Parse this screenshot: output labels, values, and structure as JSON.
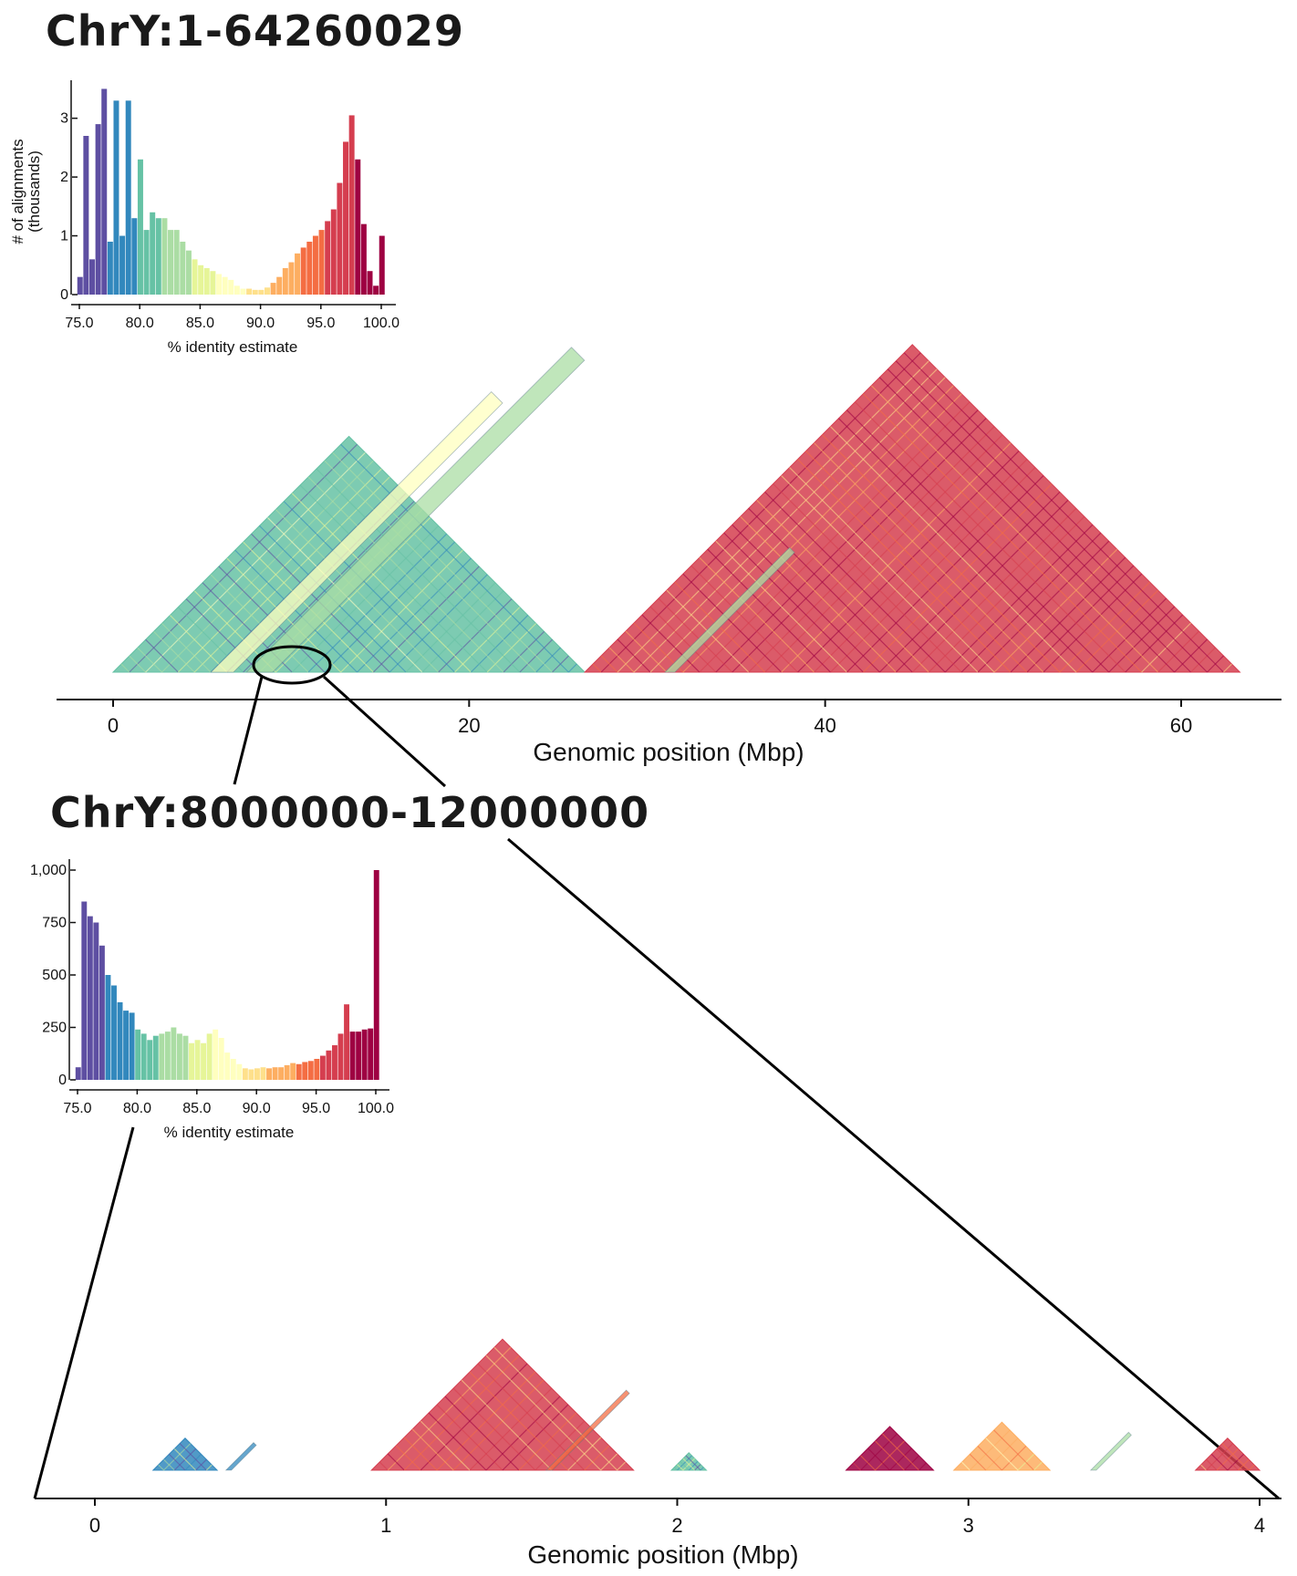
{
  "colors": {
    "palette": [
      "#5e4fa2",
      "#3288bd",
      "#66c2a5",
      "#abdda4",
      "#e6f598",
      "#ffffbf",
      "#fee08b",
      "#fdae61",
      "#f46d43",
      "#d53e4f",
      "#9e0142"
    ]
  },
  "chart_data": [
    {
      "type": "heatmap",
      "title": "ChrY:1-64260029",
      "xlabel": "Genomic position (Mbp)",
      "xlim": [
        -1.5,
        65
      ],
      "xticks": [
        0,
        20,
        40,
        60
      ],
      "xtick_labels": [
        "0",
        "20",
        "40",
        "60"
      ],
      "description_values": {
        "triangles": [
          {
            "start": 0,
            "end": 26.5,
            "identity": 80
          },
          {
            "start": 26.5,
            "end": 63.3,
            "identity": 96
          }
        ],
        "stripes": [
          {
            "start": 5.5,
            "end": 37,
            "identity": 88
          },
          {
            "start": 7.5,
            "end": 44,
            "identity": 84
          },
          {
            "start": 31,
            "end": 45,
            "identity": 82
          }
        ]
      },
      "highlight_region_mbp": [
        8,
        12
      ],
      "inset": {
        "type": "bar",
        "xlabel": "% identity estimate",
        "ylabel": "# of alignments\n(thousands)",
        "ylabel_lines": [
          "# of alignments",
          "(thousands)"
        ],
        "xlim": [
          75,
          100
        ],
        "ylim": [
          0,
          3.6
        ],
        "xticks": [
          "75.0",
          "80.0",
          "85.0",
          "90.0",
          "95.0",
          "100.0"
        ],
        "yticks": [
          "0",
          "1",
          "2",
          "3"
        ],
        "x": [
          75,
          75.5,
          76,
          76.5,
          77,
          77.5,
          78,
          78.5,
          79,
          79.5,
          80,
          80.5,
          81,
          81.5,
          82,
          82.5,
          83,
          83.5,
          84,
          84.5,
          85,
          85.5,
          86,
          86.5,
          87,
          87.5,
          88,
          88.5,
          89,
          89.5,
          90,
          90.5,
          91,
          91.5,
          92,
          92.5,
          93,
          93.5,
          94,
          94.5,
          95,
          95.5,
          96,
          96.5,
          97,
          97.5,
          98,
          98.5,
          99,
          99.5,
          100
        ],
        "values": [
          0.3,
          2.7,
          0.6,
          2.9,
          3.5,
          0.9,
          3.3,
          1.0,
          3.3,
          1.3,
          2.3,
          1.1,
          1.4,
          1.3,
          1.3,
          1.1,
          1.1,
          0.9,
          0.75,
          0.6,
          0.5,
          0.45,
          0.4,
          0.35,
          0.3,
          0.25,
          0.15,
          0.1,
          0.1,
          0.08,
          0.08,
          0.12,
          0.2,
          0.3,
          0.45,
          0.55,
          0.7,
          0.8,
          0.9,
          1.0,
          1.1,
          1.25,
          1.45,
          1.9,
          2.6,
          3.05,
          2.3,
          1.2,
          0.4,
          0.15,
          1.0
        ]
      }
    },
    {
      "type": "heatmap",
      "title": "ChrY:8000000-12000000",
      "xlabel": "Genomic position (Mbp)",
      "xlim": [
        -0.2,
        4.07
      ],
      "xticks": [
        0,
        1,
        2,
        3,
        4
      ],
      "xtick_labels": [
        "0",
        "1",
        "2",
        "3",
        "4"
      ],
      "description_values": {
        "triangles": [
          {
            "start": 0.95,
            "end": 1.85,
            "identity": 96
          },
          {
            "start": 0.2,
            "end": 0.42,
            "identity": 79
          },
          {
            "start": 2.58,
            "end": 2.88,
            "identity": 98
          },
          {
            "start": 2.95,
            "end": 3.28,
            "identity": 91
          },
          {
            "start": 3.78,
            "end": 4.0,
            "identity": 96
          },
          {
            "start": 1.98,
            "end": 2.1,
            "identity": 80
          }
        ],
        "stripes": [
          {
            "start": 1.55,
            "end": 2.1,
            "identity": 95
          },
          {
            "start": 3.42,
            "end": 3.68,
            "identity": 84
          },
          {
            "start": 0.45,
            "end": 0.64,
            "identity": 79
          }
        ]
      },
      "inset": {
        "type": "bar",
        "xlabel": "% identity estimate",
        "ylabel": "",
        "xlim": [
          75,
          100
        ],
        "ylim": [
          0,
          1000
        ],
        "xticks": [
          "75.0",
          "80.0",
          "85.0",
          "90.0",
          "95.0",
          "100.0"
        ],
        "yticks": [
          "0",
          "250",
          "500",
          "750",
          "1,000"
        ],
        "x": [
          75,
          75.5,
          76,
          76.5,
          77,
          77.5,
          78,
          78.5,
          79,
          79.5,
          80,
          80.5,
          81,
          81.5,
          82,
          82.5,
          83,
          83.5,
          84,
          84.5,
          85,
          85.5,
          86,
          86.5,
          87,
          87.5,
          88,
          88.5,
          89,
          89.5,
          90,
          90.5,
          91,
          91.5,
          92,
          92.5,
          93,
          93.5,
          94,
          94.5,
          95,
          95.5,
          96,
          96.5,
          97,
          97.5,
          98,
          98.5,
          99,
          99.5,
          100
        ],
        "values": [
          60,
          850,
          780,
          750,
          640,
          500,
          450,
          370,
          330,
          320,
          240,
          220,
          190,
          210,
          220,
          230,
          250,
          220,
          210,
          175,
          190,
          175,
          220,
          240,
          200,
          130,
          100,
          75,
          55,
          50,
          55,
          60,
          55,
          60,
          60,
          70,
          80,
          75,
          85,
          90,
          100,
          115,
          140,
          165,
          220,
          360,
          230,
          230,
          240,
          245,
          1000
        ]
      }
    }
  ]
}
